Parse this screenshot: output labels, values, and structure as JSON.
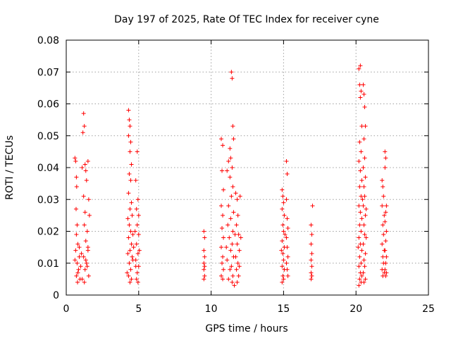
{
  "chart_data": {
    "type": "scatter",
    "title": "Day 197 of 2025, Rate Of TEC Index for receiver cyne",
    "xlabel": "GPS time / hours",
    "ylabel": "ROTI / TECUs",
    "xlim": [
      0,
      25
    ],
    "ylim": [
      0,
      0.08
    ],
    "x_ticks": [
      "0",
      "5",
      "10",
      "15",
      "20",
      "25"
    ],
    "y_ticks": [
      "0",
      "0.01",
      "0.02",
      "0.03",
      "0.04",
      "0.05",
      "0.06",
      "0.07",
      "0.08"
    ],
    "grid": true,
    "marker": "plus",
    "color": "#ff0000",
    "series": [
      {
        "values": [
          [
            0.6,
            0.043
          ],
          [
            0.65,
            0.042
          ],
          [
            0.7,
            0.037
          ],
          [
            0.72,
            0.034
          ],
          [
            0.68,
            0.027
          ],
          [
            0.75,
            0.022
          ],
          [
            0.7,
            0.019
          ],
          [
            0.8,
            0.016
          ],
          [
            0.65,
            0.014
          ],
          [
            0.9,
            0.012
          ],
          [
            0.75,
            0.01
          ],
          [
            0.85,
            0.008
          ],
          [
            0.7,
            0.006
          ],
          [
            0.95,
            0.005
          ],
          [
            0.8,
            0.007
          ],
          [
            1.0,
            0.009
          ],
          [
            0.6,
            0.011
          ],
          [
            0.9,
            0.015
          ],
          [
            1.05,
            0.013
          ],
          [
            0.78,
            0.004
          ],
          [
            1.1,
            0.04
          ],
          [
            1.2,
            0.057
          ],
          [
            1.25,
            0.053
          ],
          [
            1.15,
            0.051
          ],
          [
            1.3,
            0.041
          ],
          [
            1.35,
            0.039
          ],
          [
            1.4,
            0.036
          ],
          [
            1.2,
            0.031
          ],
          [
            1.3,
            0.026
          ],
          [
            1.25,
            0.022
          ],
          [
            1.45,
            0.02
          ],
          [
            1.35,
            0.017
          ],
          [
            1.5,
            0.014
          ],
          [
            1.2,
            0.012
          ],
          [
            1.4,
            0.01
          ],
          [
            1.3,
            0.008
          ],
          [
            1.55,
            0.006
          ],
          [
            1.1,
            0.005
          ],
          [
            1.45,
            0.009
          ],
          [
            1.25,
            0.004
          ],
          [
            1.5,
            0.042
          ],
          [
            1.55,
            0.03
          ],
          [
            1.6,
            0.025
          ],
          [
            1.5,
            0.015
          ],
          [
            1.35,
            0.011
          ],
          [
            4.3,
            0.058
          ],
          [
            4.35,
            0.055
          ],
          [
            4.4,
            0.053
          ],
          [
            4.3,
            0.05
          ],
          [
            4.45,
            0.048
          ],
          [
            4.4,
            0.045
          ],
          [
            4.5,
            0.041
          ],
          [
            4.35,
            0.038
          ],
          [
            4.45,
            0.036
          ],
          [
            4.3,
            0.032
          ],
          [
            4.5,
            0.029
          ],
          [
            4.4,
            0.027
          ],
          [
            4.55,
            0.025
          ],
          [
            4.35,
            0.022
          ],
          [
            4.45,
            0.02
          ],
          [
            4.3,
            0.018
          ],
          [
            4.5,
            0.016
          ],
          [
            4.4,
            0.014
          ],
          [
            4.55,
            0.012
          ],
          [
            4.35,
            0.01
          ],
          [
            4.45,
            0.008
          ],
          [
            4.3,
            0.006
          ],
          [
            4.5,
            0.005
          ],
          [
            4.4,
            0.004
          ],
          [
            4.6,
            0.011
          ],
          [
            4.25,
            0.013
          ],
          [
            4.6,
            0.019
          ],
          [
            4.2,
            0.007
          ],
          [
            4.65,
            0.015
          ],
          [
            4.25,
            0.024
          ],
          [
            4.8,
            0.036
          ],
          [
            4.9,
            0.045
          ],
          [
            4.95,
            0.03
          ],
          [
            4.85,
            0.027
          ],
          [
            4.9,
            0.022
          ],
          [
            5.0,
            0.019
          ],
          [
            4.85,
            0.016
          ],
          [
            4.95,
            0.013
          ],
          [
            4.8,
            0.011
          ],
          [
            5.0,
            0.009
          ],
          [
            4.9,
            0.007
          ],
          [
            4.85,
            0.005
          ],
          [
            4.95,
            0.004
          ],
          [
            5.05,
            0.014
          ],
          [
            4.75,
            0.02
          ],
          [
            5.0,
            0.025
          ],
          [
            4.8,
            0.009
          ],
          [
            9.5,
            0.02
          ],
          [
            9.55,
            0.018
          ],
          [
            9.5,
            0.014
          ],
          [
            9.55,
            0.012
          ],
          [
            9.5,
            0.01
          ],
          [
            9.55,
            0.009
          ],
          [
            9.5,
            0.008
          ],
          [
            9.55,
            0.006
          ],
          [
            9.5,
            0.005
          ],
          [
            10.7,
            0.049
          ],
          [
            10.8,
            0.047
          ],
          [
            10.75,
            0.039
          ],
          [
            10.85,
            0.033
          ],
          [
            10.7,
            0.028
          ],
          [
            10.8,
            0.025
          ],
          [
            10.75,
            0.021
          ],
          [
            10.85,
            0.018
          ],
          [
            10.7,
            0.015
          ],
          [
            10.8,
            0.012
          ],
          [
            10.75,
            0.01
          ],
          [
            10.85,
            0.008
          ],
          [
            10.7,
            0.006
          ],
          [
            10.8,
            0.005
          ],
          [
            11.1,
            0.039
          ],
          [
            11.2,
            0.042
          ],
          [
            11.3,
            0.046
          ],
          [
            11.4,
            0.07
          ],
          [
            11.45,
            0.068
          ],
          [
            11.5,
            0.053
          ],
          [
            11.55,
            0.049
          ],
          [
            11.35,
            0.043
          ],
          [
            11.45,
            0.04
          ],
          [
            11.3,
            0.037
          ],
          [
            11.5,
            0.034
          ],
          [
            11.4,
            0.031
          ],
          [
            11.2,
            0.028
          ],
          [
            11.55,
            0.026
          ],
          [
            11.35,
            0.024
          ],
          [
            11.15,
            0.022
          ],
          [
            11.5,
            0.02
          ],
          [
            11.25,
            0.018
          ],
          [
            11.45,
            0.016
          ],
          [
            11.35,
            0.014
          ],
          [
            11.55,
            0.012
          ],
          [
            11.1,
            0.011
          ],
          [
            11.4,
            0.009
          ],
          [
            11.3,
            0.008
          ],
          [
            11.5,
            0.006
          ],
          [
            11.2,
            0.005
          ],
          [
            11.45,
            0.004
          ],
          [
            11.6,
            0.003
          ],
          [
            11.05,
            0.015
          ],
          [
            11.65,
            0.019
          ],
          [
            11.7,
            0.032
          ],
          [
            11.8,
            0.03
          ],
          [
            11.85,
            0.025
          ],
          [
            11.75,
            0.022
          ],
          [
            11.9,
            0.019
          ],
          [
            11.8,
            0.016
          ],
          [
            11.95,
            0.014
          ],
          [
            11.7,
            0.012
          ],
          [
            11.85,
            0.01
          ],
          [
            11.75,
            0.008
          ],
          [
            11.9,
            0.006
          ],
          [
            11.8,
            0.004
          ],
          [
            12.0,
            0.031
          ],
          [
            12.05,
            0.018
          ],
          [
            11.95,
            0.009
          ],
          [
            14.9,
            0.033
          ],
          [
            14.95,
            0.031
          ],
          [
            15.0,
            0.029
          ],
          [
            14.9,
            0.027
          ],
          [
            15.05,
            0.025
          ],
          [
            14.95,
            0.022
          ],
          [
            15.0,
            0.02
          ],
          [
            14.9,
            0.017
          ],
          [
            15.05,
            0.015
          ],
          [
            14.95,
            0.013
          ],
          [
            15.0,
            0.011
          ],
          [
            14.9,
            0.009
          ],
          [
            15.05,
            0.008
          ],
          [
            14.95,
            0.006
          ],
          [
            15.0,
            0.005
          ],
          [
            14.9,
            0.004
          ],
          [
            15.1,
            0.019
          ],
          [
            14.85,
            0.014
          ],
          [
            15.2,
            0.042
          ],
          [
            15.25,
            0.038
          ],
          [
            15.2,
            0.03
          ],
          [
            15.25,
            0.024
          ],
          [
            15.3,
            0.021
          ],
          [
            15.2,
            0.018
          ],
          [
            15.25,
            0.015
          ],
          [
            15.3,
            0.012
          ],
          [
            15.2,
            0.01
          ],
          [
            15.25,
            0.008
          ],
          [
            15.3,
            0.006
          ],
          [
            16.9,
            0.022
          ],
          [
            16.95,
            0.019
          ],
          [
            16.9,
            0.016
          ],
          [
            16.95,
            0.013
          ],
          [
            16.9,
            0.011
          ],
          [
            16.95,
            0.009
          ],
          [
            16.9,
            0.007
          ],
          [
            16.95,
            0.006
          ],
          [
            16.9,
            0.005
          ],
          [
            17.0,
            0.028
          ],
          [
            20.2,
            0.071
          ],
          [
            20.3,
            0.072
          ],
          [
            20.25,
            0.066
          ],
          [
            20.35,
            0.064
          ],
          [
            20.3,
            0.062
          ],
          [
            20.4,
            0.053
          ],
          [
            20.25,
            0.048
          ],
          [
            20.35,
            0.045
          ],
          [
            20.2,
            0.042
          ],
          [
            20.3,
            0.039
          ],
          [
            20.4,
            0.036
          ],
          [
            20.25,
            0.034
          ],
          [
            20.35,
            0.031
          ],
          [
            20.2,
            0.028
          ],
          [
            20.3,
            0.026
          ],
          [
            20.4,
            0.024
          ],
          [
            20.25,
            0.022
          ],
          [
            20.35,
            0.02
          ],
          [
            20.2,
            0.018
          ],
          [
            20.3,
            0.016
          ],
          [
            20.4,
            0.014
          ],
          [
            20.25,
            0.012
          ],
          [
            20.35,
            0.01
          ],
          [
            20.2,
            0.009
          ],
          [
            20.3,
            0.007
          ],
          [
            20.4,
            0.006
          ],
          [
            20.25,
            0.005
          ],
          [
            20.35,
            0.004
          ],
          [
            20.2,
            0.003
          ],
          [
            20.45,
            0.03
          ],
          [
            20.15,
            0.015
          ],
          [
            20.5,
            0.066
          ],
          [
            20.55,
            0.063
          ],
          [
            20.6,
            0.059
          ],
          [
            20.65,
            0.053
          ],
          [
            20.55,
            0.049
          ],
          [
            20.6,
            0.043
          ],
          [
            20.5,
            0.04
          ],
          [
            20.65,
            0.037
          ],
          [
            20.55,
            0.034
          ],
          [
            20.6,
            0.031
          ],
          [
            20.5,
            0.028
          ],
          [
            20.65,
            0.025
          ],
          [
            20.55,
            0.022
          ],
          [
            20.6,
            0.019
          ],
          [
            20.5,
            0.016
          ],
          [
            20.65,
            0.013
          ],
          [
            20.55,
            0.011
          ],
          [
            20.6,
            0.009
          ],
          [
            20.5,
            0.007
          ],
          [
            20.65,
            0.005
          ],
          [
            20.55,
            0.004
          ],
          [
            20.7,
            0.018
          ],
          [
            20.7,
            0.027
          ],
          [
            21.8,
            0.036
          ],
          [
            21.85,
            0.034
          ],
          [
            21.9,
            0.031
          ],
          [
            21.8,
            0.028
          ],
          [
            21.95,
            0.025
          ],
          [
            21.85,
            0.022
          ],
          [
            21.9,
            0.019
          ],
          [
            21.8,
            0.016
          ],
          [
            21.95,
            0.014
          ],
          [
            21.85,
            0.012
          ],
          [
            21.9,
            0.01
          ],
          [
            21.8,
            0.008
          ],
          [
            21.95,
            0.007
          ],
          [
            21.85,
            0.006
          ],
          [
            22.0,
            0.045
          ],
          [
            22.05,
            0.043
          ],
          [
            22.0,
            0.04
          ],
          [
            22.1,
            0.028
          ],
          [
            22.05,
            0.026
          ],
          [
            22.0,
            0.023
          ],
          [
            22.1,
            0.02
          ],
          [
            22.05,
            0.017
          ],
          [
            22.0,
            0.014
          ],
          [
            22.1,
            0.012
          ],
          [
            22.05,
            0.01
          ],
          [
            22.0,
            0.008
          ],
          [
            22.1,
            0.007
          ],
          [
            22.05,
            0.006
          ]
        ]
      }
    ]
  }
}
